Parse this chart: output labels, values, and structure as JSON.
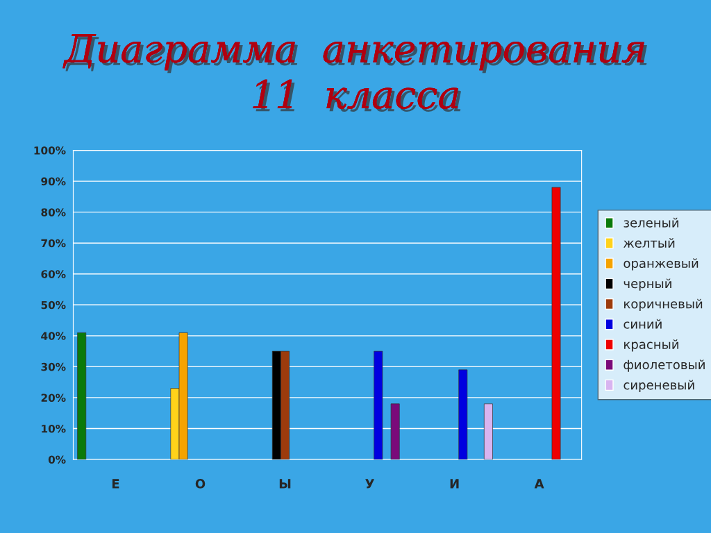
{
  "chart_data": {
    "type": "bar",
    "title": "Диаграмма  анкетирования\n11  класса",
    "categories": [
      "Е",
      "О",
      "Ы",
      "У",
      "И",
      "А"
    ],
    "series": [
      {
        "name": "зеленый",
        "color": "#0a7a0a",
        "values": [
          41,
          null,
          null,
          null,
          null,
          null
        ]
      },
      {
        "name": "желтый",
        "color": "#ffd21a",
        "values": [
          null,
          23,
          null,
          null,
          null,
          null
        ]
      },
      {
        "name": "оранжевый",
        "color": "#f5a300",
        "values": [
          null,
          41,
          null,
          null,
          null,
          null
        ]
      },
      {
        "name": "черный",
        "color": "#000000",
        "values": [
          null,
          null,
          35,
          null,
          null,
          null
        ]
      },
      {
        "name": "коричневый",
        "color": "#9c3b0c",
        "values": [
          null,
          null,
          35,
          null,
          null,
          null
        ]
      },
      {
        "name": "синий",
        "color": "#0000e0",
        "values": [
          null,
          null,
          null,
          35,
          29,
          null
        ]
      },
      {
        "name": "красный",
        "color": "#ee0000",
        "values": [
          null,
          null,
          null,
          null,
          null,
          88
        ]
      },
      {
        "name": "фиолетовый",
        "color": "#7a0a7a",
        "values": [
          null,
          null,
          null,
          18,
          null,
          null
        ]
      },
      {
        "name": "сиреневый",
        "color": "#d8b4f0",
        "values": [
          null,
          null,
          null,
          null,
          18,
          null
        ]
      }
    ],
    "ylim": [
      0,
      100
    ],
    "yticks": [
      {
        "value": 0,
        "label": "0%"
      },
      {
        "value": 10,
        "label": "10%"
      },
      {
        "value": 20,
        "label": "20%"
      },
      {
        "value": 30,
        "label": "30%"
      },
      {
        "value": 40,
        "label": "40%"
      },
      {
        "value": 50,
        "label": "50%"
      },
      {
        "value": 60,
        "label": "60%"
      },
      {
        "value": 70,
        "label": "70%"
      },
      {
        "value": 80,
        "label": "80%"
      },
      {
        "value": 90,
        "label": "90%"
      },
      {
        "value": 100,
        "label": "100%"
      }
    ],
    "grid": "y",
    "legend": "right"
  }
}
